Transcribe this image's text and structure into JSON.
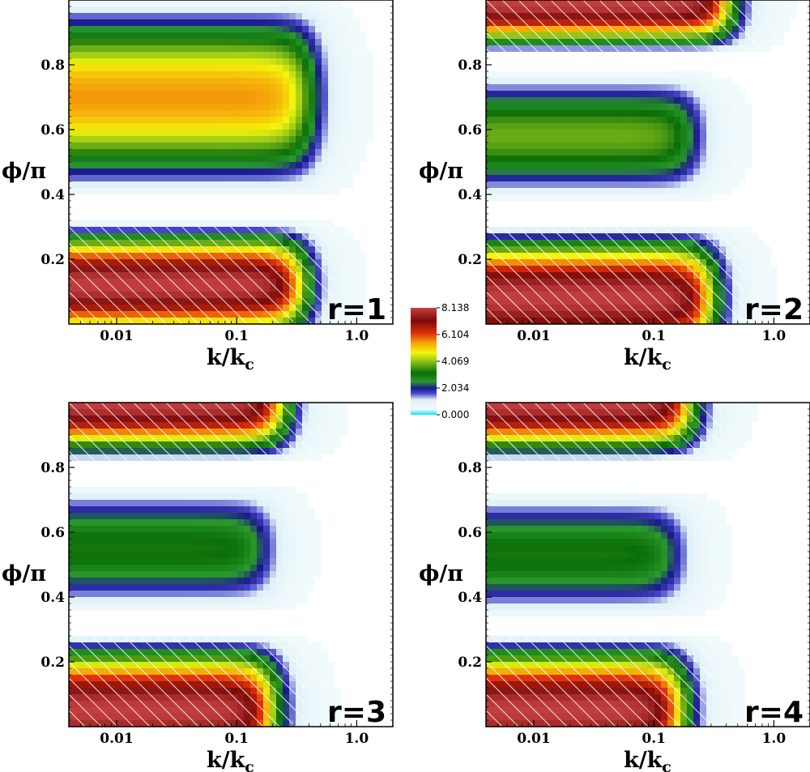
{
  "chart_data": [
    {
      "type": "heatmap",
      "annotation": "r=1",
      "xlabel": "k/k",
      "xlabel_sub": "c",
      "ylabel": "ϕ/π",
      "x_ticks": [
        "0.01",
        "0.1",
        "1.0"
      ],
      "y_ticks": [
        "0.2",
        "0.4",
        "0.6",
        "0.8"
      ],
      "xlim": [
        0.004,
        2.0
      ],
      "ylim": [
        0,
        1
      ],
      "x_scale": "log",
      "hatched": true,
      "bands": [
        {
          "y_center": 0.12,
          "half_width": 0.2,
          "peak": 8.1,
          "k_edge": 0.35
        },
        {
          "y_center": 0.7,
          "half_width": 0.31,
          "peak": 5.4,
          "k_edge": 0.42
        }
      ],
      "zero_lines": [
        0.36
      ]
    },
    {
      "type": "heatmap",
      "annotation": "r=2",
      "xlabel": "k/k",
      "xlabel_sub": "c",
      "ylabel": "ϕ/π",
      "x_ticks": [
        "0.01",
        "0.1",
        "1.0"
      ],
      "y_ticks": [
        "0.2",
        "0.4",
        "0.6",
        "0.8"
      ],
      "xlim": [
        0.004,
        2.0
      ],
      "ylim": [
        0,
        1
      ],
      "x_scale": "log",
      "hatched": true,
      "bands": [
        {
          "y_center": 0.08,
          "half_width": 0.23,
          "peak": 8.1,
          "k_edge": 0.3
        },
        {
          "y_center": 0.58,
          "half_width": 0.2,
          "peak": 3.6,
          "k_edge": 0.22
        },
        {
          "y_center": 0.99,
          "half_width": 0.16,
          "peak": 8.1,
          "k_edge": 0.42
        }
      ],
      "zero_lines": [
        0.35,
        0.8
      ]
    },
    {
      "type": "heatmap",
      "annotation": "r=3",
      "xlabel": "k/k",
      "xlabel_sub": "c",
      "ylabel": "ϕ/π",
      "x_ticks": [
        "0.01",
        "0.1",
        "1.0"
      ],
      "y_ticks": [
        "0.2",
        "0.4",
        "0.6",
        "0.8"
      ],
      "xlim": [
        0.004,
        2.0
      ],
      "ylim": [
        0,
        1
      ],
      "x_scale": "log",
      "hatched": true,
      "bands": [
        {
          "y_center": 0.05,
          "half_width": 0.24,
          "peak": 8.1,
          "k_edge": 0.2
        },
        {
          "y_center": 0.55,
          "half_width": 0.2,
          "peak": 3.0,
          "k_edge": 0.18
        },
        {
          "y_center": 1.0,
          "half_width": 0.19,
          "peak": 8.1,
          "k_edge": 0.24
        }
      ],
      "zero_lines": [
        0.33,
        0.79
      ]
    },
    {
      "type": "heatmap",
      "annotation": "r=4",
      "xlabel": "k/k",
      "xlabel_sub": "c",
      "ylabel": "ϕ/π",
      "x_ticks": [
        "0.01",
        "0.1",
        "1.0"
      ],
      "y_ticks": [
        "0.2",
        "0.4",
        "0.6",
        "0.8"
      ],
      "xlim": [
        0.004,
        2.0
      ],
      "ylim": [
        0,
        1
      ],
      "x_scale": "log",
      "hatched": true,
      "bands": [
        {
          "y_center": 0.05,
          "half_width": 0.24,
          "peak": 8.1,
          "k_edge": 0.17
        },
        {
          "y_center": 0.53,
          "half_width": 0.2,
          "peak": 3.0,
          "k_edge": 0.16
        },
        {
          "y_center": 1.0,
          "half_width": 0.19,
          "peak": 8.1,
          "k_edge": 0.2
        }
      ],
      "zero_lines": [
        0.32,
        0.78
      ]
    }
  ],
  "colorbar": {
    "min": 0.0,
    "max": 8.138,
    "ticks": [
      "8.138",
      "6.104",
      "4.069",
      "2.034",
      "0.000"
    ],
    "stops": [
      {
        "v": 0.0,
        "color": "#00e5ee"
      },
      {
        "v": 0.05,
        "color": "#f2fbfc"
      },
      {
        "v": 0.14,
        "color": "#e0f0f8"
      },
      {
        "v": 0.2,
        "color": "#4848c8"
      },
      {
        "v": 0.25,
        "color": "#1a1a8c"
      },
      {
        "v": 0.31,
        "color": "#2a9a2a"
      },
      {
        "v": 0.39,
        "color": "#0a6e0a"
      },
      {
        "v": 0.5,
        "color": "#8ec41a"
      },
      {
        "v": 0.58,
        "color": "#f5f50a"
      },
      {
        "v": 0.67,
        "color": "#f5a50a"
      },
      {
        "v": 0.76,
        "color": "#e0300a"
      },
      {
        "v": 0.88,
        "color": "#7a0a0a"
      },
      {
        "v": 1.0,
        "color": "#c54040"
      }
    ]
  }
}
